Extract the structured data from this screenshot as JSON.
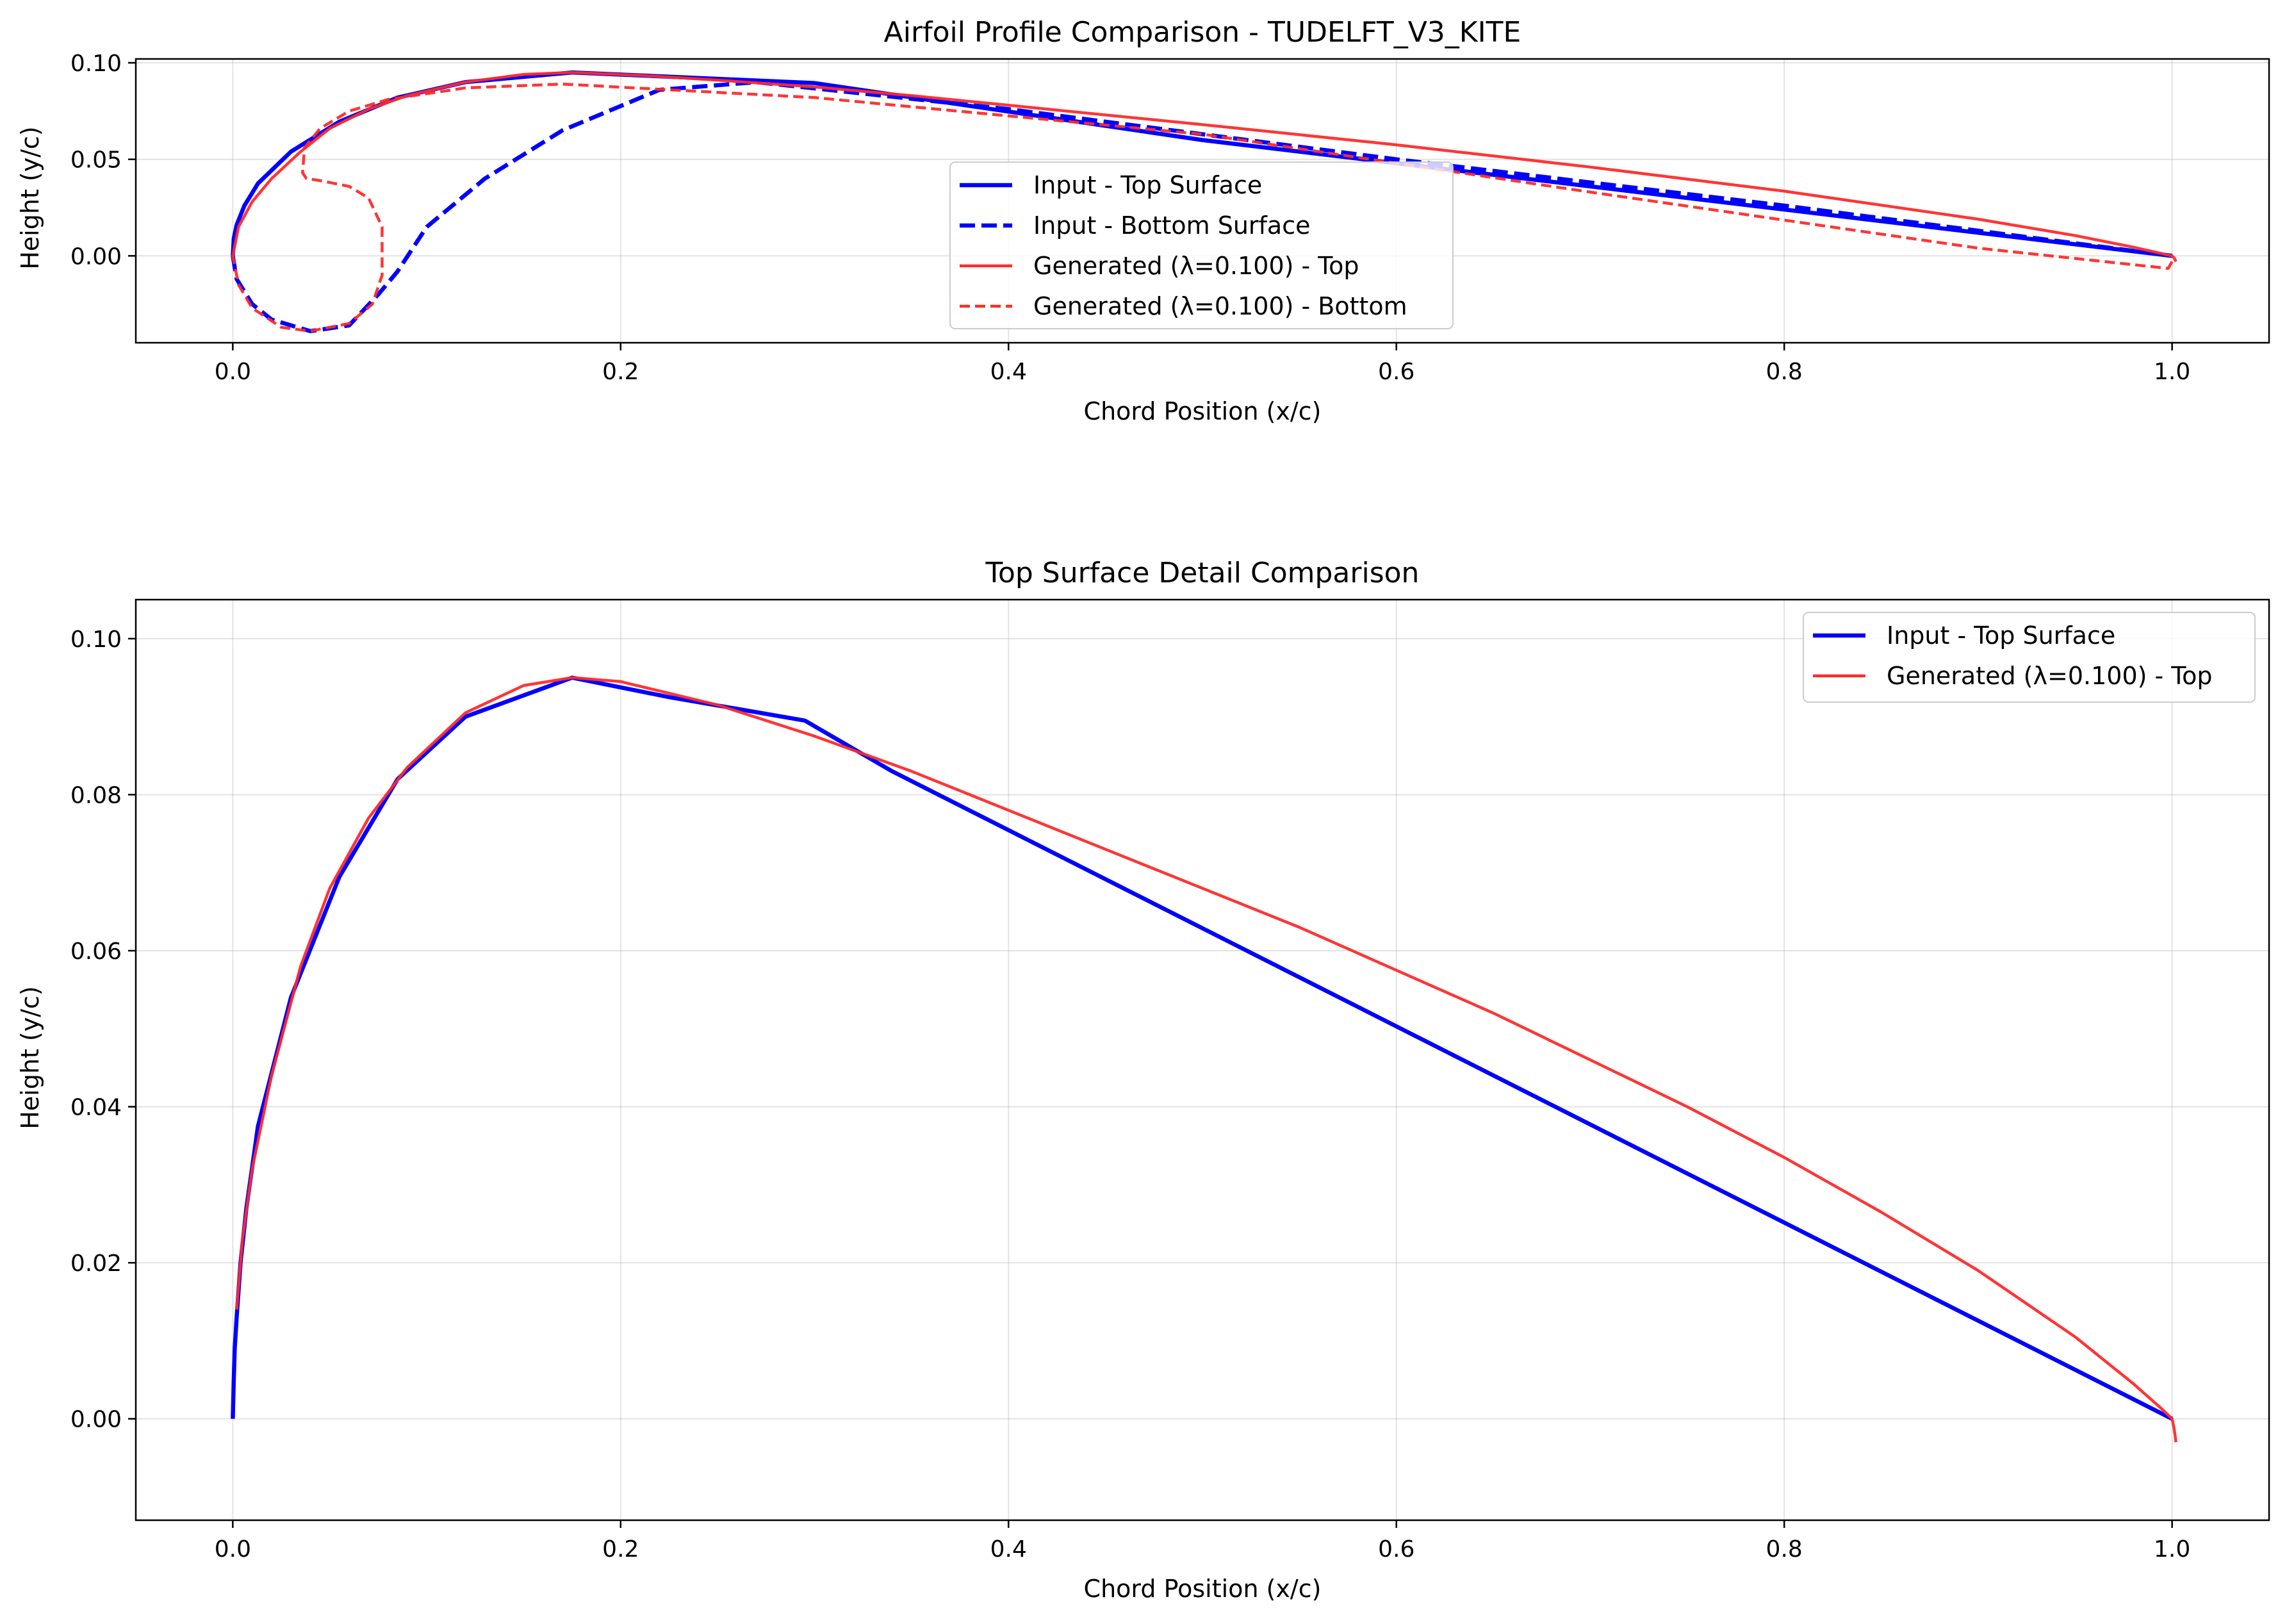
{
  "chart_data": [
    {
      "type": "line",
      "title": "Airfoil Profile Comparison - TUDELFT_V3_KITE",
      "xlabel": "Chord Position (x/c)",
      "ylabel": "Height (y/c)",
      "xlim": [
        -0.05,
        1.05
      ],
      "ylim": [
        -0.045,
        0.102
      ],
      "xticks": [
        0.0,
        0.2,
        0.4,
        0.6,
        0.8,
        1.0
      ],
      "xtick_labels": [
        "0.0",
        "0.2",
        "0.4",
        "0.6",
        "0.8",
        "1.0"
      ],
      "yticks": [
        0.0,
        0.05,
        0.1
      ],
      "ytick_labels": [
        "0.00",
        "0.05",
        "0.10"
      ],
      "grid": true,
      "legend_position": "center",
      "series": [
        {
          "name": "Input - Top Surface",
          "color": "#0000ff",
          "style": "solid",
          "points": [
            [
              1.0,
              0.0
            ],
            [
              0.5,
              0.06
            ],
            [
              0.3,
              0.0895
            ],
            [
              0.175,
              0.095
            ],
            [
              0.12,
              0.09
            ],
            [
              0.085,
              0.082
            ],
            [
              0.055,
              0.0695
            ],
            [
              0.03,
              0.054
            ],
            [
              0.013,
              0.0375
            ],
            [
              0.006,
              0.026
            ],
            [
              0.002,
              0.016
            ],
            [
              0.0005,
              0.009
            ],
            [
              0.0,
              0.0
            ]
          ]
        },
        {
          "name": "Input - Bottom Surface",
          "color": "#0000ff",
          "style": "dashed",
          "points": [
            [
              0.0,
              0.0
            ],
            [
              0.002,
              -0.012
            ],
            [
              0.01,
              -0.025
            ],
            [
              0.02,
              -0.033
            ],
            [
              0.04,
              -0.039
            ],
            [
              0.06,
              -0.036
            ],
            [
              0.075,
              -0.02
            ],
            [
              0.085,
              -0.008
            ],
            [
              0.1,
              0.015
            ],
            [
              0.13,
              0.04
            ],
            [
              0.17,
              0.065
            ],
            [
              0.22,
              0.086
            ],
            [
              0.27,
              0.09
            ],
            [
              0.4,
              0.076
            ],
            [
              0.6,
              0.05
            ],
            [
              0.8,
              0.026
            ],
            [
              1.0,
              0.0
            ]
          ]
        },
        {
          "name": "Generated (λ=0.100) - Top",
          "color": "#ff2a2a",
          "style": "solid",
          "points": [
            [
              0.0,
              0.0
            ],
            [
              0.003,
              0.015
            ],
            [
              0.01,
              0.028
            ],
            [
              0.02,
              0.04
            ],
            [
              0.035,
              0.054
            ],
            [
              0.05,
              0.066
            ],
            [
              0.07,
              0.076
            ],
            [
              0.09,
              0.083
            ],
            [
              0.12,
              0.09
            ],
            [
              0.15,
              0.094
            ],
            [
              0.175,
              0.095
            ],
            [
              0.21,
              0.0935
            ],
            [
              0.25,
              0.091
            ],
            [
              0.3,
              0.0875
            ],
            [
              0.35,
              0.083
            ],
            [
              0.4,
              0.078
            ],
            [
              0.5,
              0.068
            ],
            [
              0.6,
              0.0575
            ],
            [
              0.7,
              0.046
            ],
            [
              0.8,
              0.0335
            ],
            [
              0.9,
              0.019
            ],
            [
              0.95,
              0.0105
            ],
            [
              0.98,
              0.0045
            ],
            [
              1.0,
              0.0
            ],
            [
              1.001,
              -0.001
            ],
            [
              1.002,
              -0.003
            ]
          ]
        },
        {
          "name": "Generated (λ=0.100) - Bottom",
          "color": "#ff2a2a",
          "style": "dashed",
          "points": [
            [
              1.0,
              -0.003
            ],
            [
              0.998,
              -0.0065
            ],
            [
              0.9,
              0.004
            ],
            [
              0.7,
              0.033
            ],
            [
              0.5,
              0.063
            ],
            [
              0.3,
              0.082
            ],
            [
              0.17,
              0.089
            ],
            [
              0.12,
              0.087
            ],
            [
              0.08,
              0.081
            ],
            [
              0.06,
              0.075
            ],
            [
              0.045,
              0.066
            ],
            [
              0.037,
              0.056
            ],
            [
              0.036,
              0.043
            ],
            [
              0.038,
              0.04
            ],
            [
              0.045,
              0.039
            ],
            [
              0.06,
              0.036
            ],
            [
              0.07,
              0.03
            ],
            [
              0.077,
              0.015
            ],
            [
              0.077,
              -0.01
            ],
            [
              0.072,
              -0.025
            ],
            [
              0.06,
              -0.035
            ],
            [
              0.04,
              -0.039
            ],
            [
              0.025,
              -0.037
            ],
            [
              0.01,
              -0.027
            ],
            [
              0.003,
              -0.015
            ],
            [
              0.0,
              0.0
            ]
          ]
        }
      ]
    },
    {
      "type": "line",
      "title": "Top Surface Detail Comparison",
      "xlabel": "Chord Position (x/c)",
      "ylabel": "Height (y/c)",
      "xlim": [
        -0.05,
        1.05
      ],
      "ylim": [
        -0.013,
        0.105
      ],
      "xticks": [
        0.0,
        0.2,
        0.4,
        0.6,
        0.8,
        1.0
      ],
      "xtick_labels": [
        "0.0",
        "0.2",
        "0.4",
        "0.6",
        "0.8",
        "1.0"
      ],
      "yticks": [
        0.0,
        0.02,
        0.04,
        0.06,
        0.08,
        0.1
      ],
      "ytick_labels": [
        "0.00",
        "0.02",
        "0.04",
        "0.06",
        "0.08",
        "0.10"
      ],
      "grid": true,
      "legend_position": "upper right",
      "series": [
        {
          "name": "Input - Top Surface",
          "color": "#0000ff",
          "style": "solid",
          "points": [
            [
              0.0,
              0.0
            ],
            [
              0.0005,
              0.005
            ],
            [
              0.001,
              0.009
            ],
            [
              0.002,
              0.013
            ],
            [
              0.004,
              0.02
            ],
            [
              0.007,
              0.027
            ],
            [
              0.013,
              0.0375
            ],
            [
              0.03,
              0.054
            ],
            [
              0.055,
              0.0695
            ],
            [
              0.085,
              0.082
            ],
            [
              0.12,
              0.09
            ],
            [
              0.175,
              0.095
            ],
            [
              0.225,
              0.0925
            ],
            [
              0.295,
              0.0895
            ],
            [
              0.34,
              0.083
            ],
            [
              1.0,
              0.0
            ]
          ]
        },
        {
          "name": "Generated (λ=0.100) - Top",
          "color": "#ff2a2a",
          "style": "solid",
          "points": [
            [
              0.002,
              0.014
            ],
            [
              0.005,
              0.023
            ],
            [
              0.01,
              0.032
            ],
            [
              0.02,
              0.044
            ],
            [
              0.035,
              0.058
            ],
            [
              0.05,
              0.068
            ],
            [
              0.07,
              0.077
            ],
            [
              0.09,
              0.0835
            ],
            [
              0.12,
              0.0905
            ],
            [
              0.15,
              0.094
            ],
            [
              0.175,
              0.095
            ],
            [
              0.2,
              0.0945
            ],
            [
              0.25,
              0.0915
            ],
            [
              0.3,
              0.0875
            ],
            [
              0.35,
              0.083
            ],
            [
              0.4,
              0.078
            ],
            [
              0.45,
              0.073
            ],
            [
              0.5,
              0.068
            ],
            [
              0.55,
              0.063
            ],
            [
              0.6,
              0.0575
            ],
            [
              0.65,
              0.052
            ],
            [
              0.7,
              0.046
            ],
            [
              0.75,
              0.04
            ],
            [
              0.8,
              0.0335
            ],
            [
              0.85,
              0.0265
            ],
            [
              0.9,
              0.019
            ],
            [
              0.95,
              0.0105
            ],
            [
              0.98,
              0.0045
            ],
            [
              0.995,
              0.0012
            ],
            [
              1.0,
              0.0
            ],
            [
              1.001,
              -0.0012
            ],
            [
              1.002,
              -0.003
            ]
          ]
        }
      ]
    }
  ]
}
